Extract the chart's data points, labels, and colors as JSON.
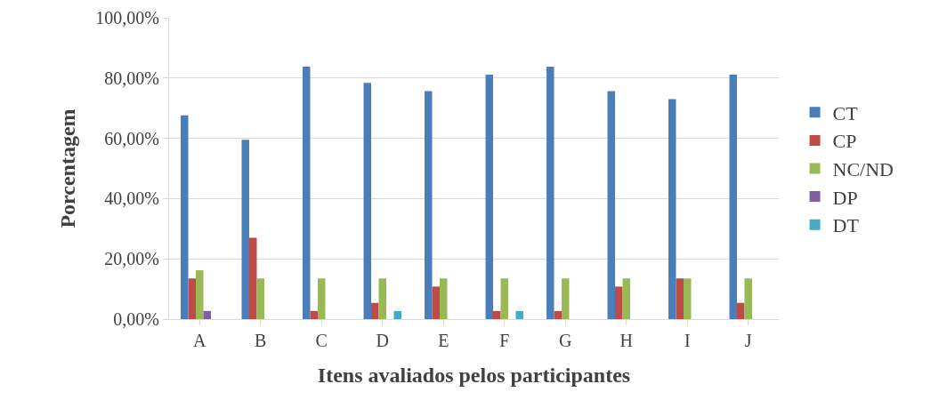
{
  "chart_data": {
    "type": "bar",
    "xlabel": "Itens avaliados pelos participantes",
    "ylabel": "Porcentagem",
    "categories": [
      "A",
      "B",
      "C",
      "D",
      "E",
      "F",
      "G",
      "H",
      "I",
      "J"
    ],
    "series": [
      {
        "name": "CT",
        "color": "#4a7ebb",
        "values": [
          67.6,
          59.5,
          83.8,
          78.4,
          75.7,
          81.1,
          83.8,
          75.7,
          73.0,
          81.1
        ]
      },
      {
        "name": "CP",
        "color": "#be4b48",
        "values": [
          13.5,
          27.0,
          2.7,
          5.4,
          10.8,
          2.7,
          2.7,
          10.8,
          13.5,
          5.4
        ]
      },
      {
        "name": "NC/ND",
        "color": "#98b954",
        "values": [
          16.2,
          13.5,
          13.5,
          13.5,
          13.5,
          13.5,
          13.5,
          13.5,
          13.5,
          13.5
        ]
      },
      {
        "name": "DP",
        "color": "#7d60a0",
        "values": [
          2.7,
          0,
          0,
          0,
          0,
          0,
          0,
          0,
          0,
          0
        ]
      },
      {
        "name": "DT",
        "color": "#46aac5",
        "values": [
          0,
          0,
          0,
          2.7,
          0,
          2.7,
          0,
          0,
          0,
          0
        ]
      }
    ],
    "ylim": [
      0,
      100
    ],
    "yticks": [
      {
        "value": 0,
        "label": "0,00%"
      },
      {
        "value": 20,
        "label": "20,00%"
      },
      {
        "value": 40,
        "label": "40,00%"
      },
      {
        "value": 60,
        "label": "60,00%"
      },
      {
        "value": 80,
        "label": "80,00%"
      },
      {
        "value": 100,
        "label": "100,00%"
      }
    ],
    "grid": "y",
    "legend": "right"
  }
}
